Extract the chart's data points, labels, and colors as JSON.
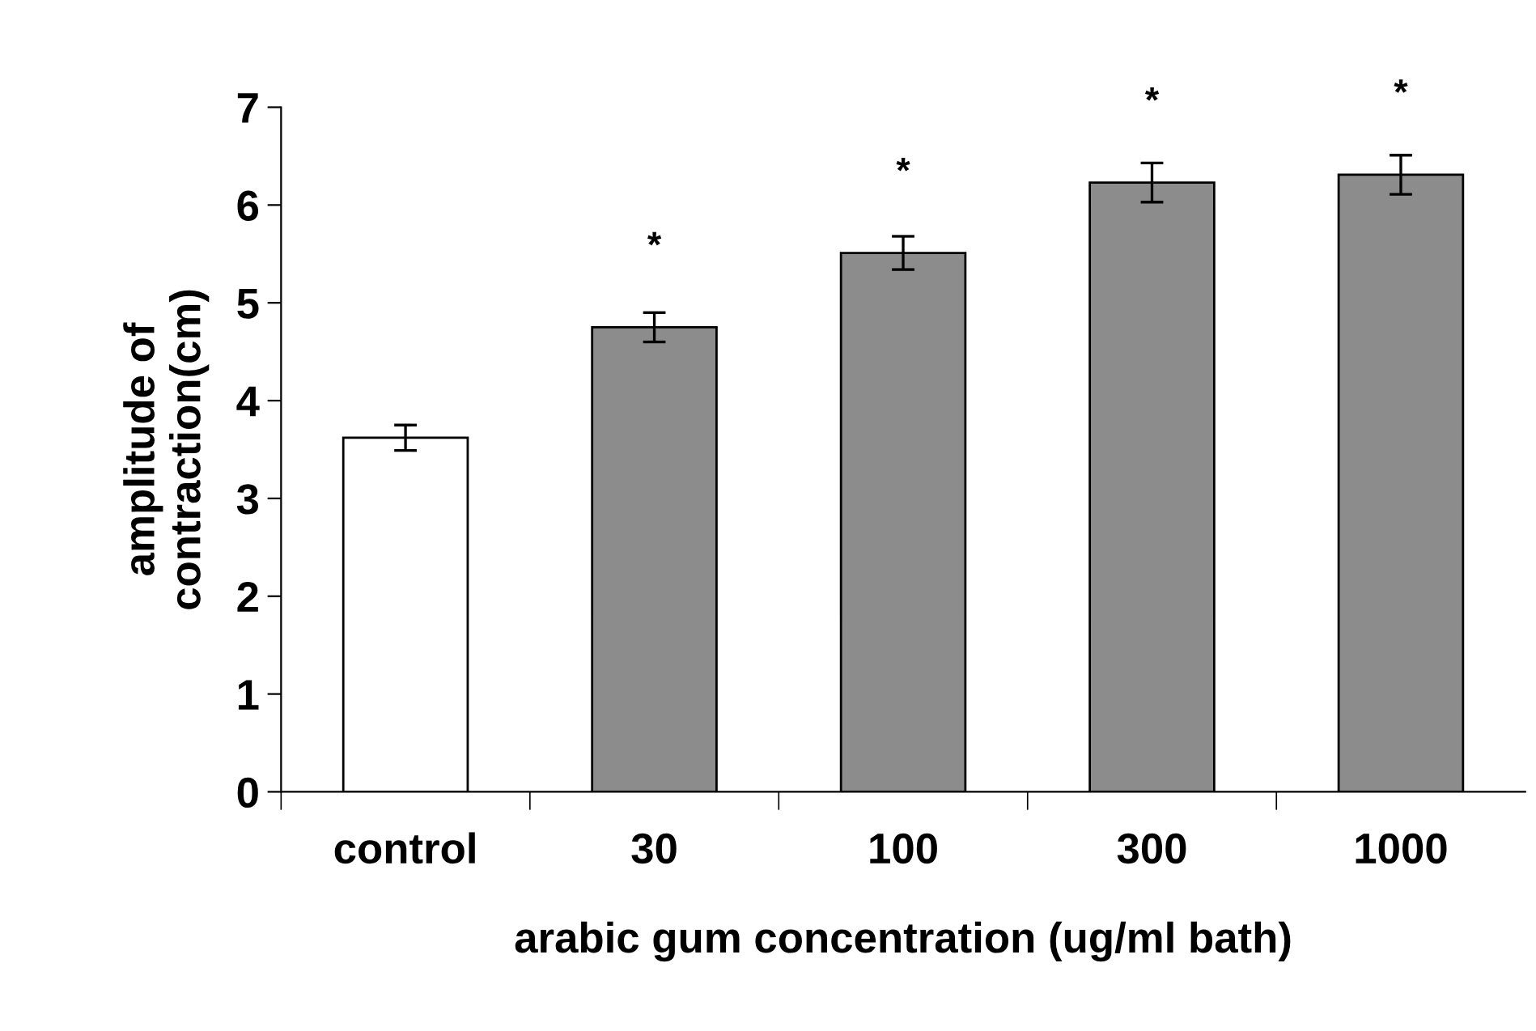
{
  "chart_data": {
    "type": "bar",
    "xlabel": "arabic gum concentration (ug/ml bath)",
    "ylabel": "amplitude of\ncontraction(cm)",
    "categories": [
      "control",
      "30",
      "100",
      "300",
      "1000"
    ],
    "values": [
      3.62,
      4.75,
      5.51,
      6.23,
      6.31
    ],
    "errors": [
      0.13,
      0.15,
      0.17,
      0.2,
      0.2
    ],
    "colors": [
      "#ffffff",
      "#8c8c8c",
      "#8c8c8c",
      "#8c8c8c",
      "#8c8c8c"
    ],
    "ylim": [
      0,
      7
    ],
    "yticks": [
      0,
      1,
      2,
      3,
      4,
      5,
      6,
      7
    ],
    "grid": false,
    "annotations": [
      {
        "text": "*",
        "x": "30",
        "y": 4.75
      },
      {
        "text": "*",
        "x": "100",
        "y": 5.51
      },
      {
        "text": "*",
        "x": "300",
        "y": 6.23
      },
      {
        "text": "*",
        "x": "1000",
        "y": 6.31
      }
    ]
  }
}
